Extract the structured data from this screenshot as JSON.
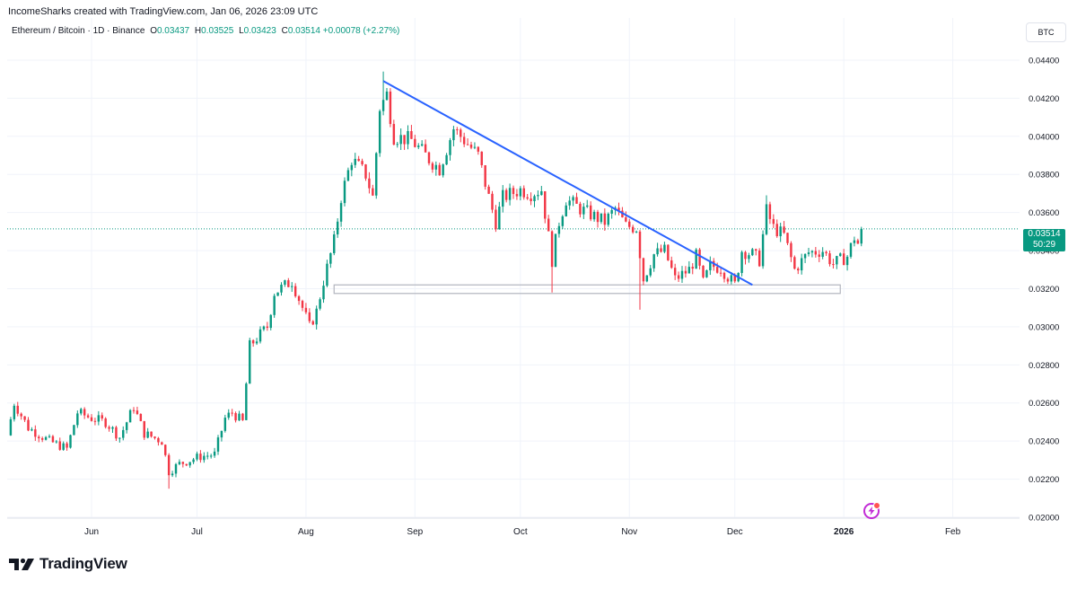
{
  "credit": {
    "author": "IncomeSharks",
    "text": "IncomeSharks created with TradingView.com, Jan 06, 2026 23:09 UTC"
  },
  "legend": {
    "symbol": "Ethereum / Bitcoin · 1D · Binance",
    "open_label": "O",
    "open": "0.03437",
    "high_label": "H",
    "high": "0.03525",
    "low_label": "L",
    "low": "0.03423",
    "close_label": "C",
    "close": "0.03514",
    "change": "+0.00078 (+2.27%)"
  },
  "currency_button": "BTC",
  "price_label": {
    "price": "0.03514",
    "countdown": "50:29"
  },
  "brand": {
    "name": "TradingView"
  },
  "colors": {
    "up": "#089981",
    "down": "#F23645",
    "trendline": "#2962FF",
    "grid": "#F0F3FA",
    "axis_text": "#131722",
    "box": "#B2B5BE",
    "lastprice_line": "#089981"
  },
  "icons": {
    "logo": "tradingview-logo-icon",
    "alert": "lightning-bolt-icon"
  },
  "chart_data": {
    "type": "candlestick",
    "title": "Ethereum / Bitcoin · 1D · Binance",
    "y_axis": {
      "side": "right",
      "ticks": [
        "0.02000",
        "0.02200",
        "0.02400",
        "0.02600",
        "0.02800",
        "0.03000",
        "0.03200",
        "0.03400",
        "0.03600",
        "0.03800",
        "0.04000",
        "0.04200",
        "0.04400"
      ],
      "ylim": [
        0.02,
        0.0448
      ]
    },
    "x_axis": {
      "labels": [
        "Jun",
        "Jul",
        "Aug",
        "Sep",
        "Oct",
        "Nov",
        "Dec",
        "2026",
        "Feb"
      ],
      "xlim": [
        "2025-05-08",
        "2026-02-20"
      ]
    },
    "grid": true,
    "last_price": 0.03514,
    "trendline": {
      "start": {
        "date": "2025-08-23",
        "value": 0.0429
      },
      "end": {
        "date": "2025-12-06",
        "value": 0.0322
      }
    },
    "support_zone": {
      "from": "2025-08-09",
      "to": "2025-12-31",
      "low": 0.03175,
      "high": 0.0322
    },
    "ohlc_anchors": [
      {
        "date": "2025-05-08",
        "close": 0.0243
      },
      {
        "date": "2025-05-10",
        "close": 0.026
      },
      {
        "date": "2025-05-14",
        "close": 0.0247
      },
      {
        "date": "2025-05-20",
        "close": 0.024
      },
      {
        "date": "2025-05-25",
        "close": 0.0236
      },
      {
        "date": "2025-05-28",
        "close": 0.0255
      },
      {
        "date": "2025-06-01",
        "close": 0.0252
      },
      {
        "date": "2025-06-05",
        "close": 0.025
      },
      {
        "date": "2025-06-09",
        "close": 0.0242
      },
      {
        "date": "2025-06-13",
        "close": 0.0258
      },
      {
        "date": "2025-06-16",
        "close": 0.0244
      },
      {
        "date": "2025-06-21",
        "close": 0.024
      },
      {
        "date": "2025-06-23",
        "close": 0.0224
      },
      {
        "date": "2025-06-26",
        "close": 0.0228
      },
      {
        "date": "2025-07-02",
        "close": 0.0232
      },
      {
        "date": "2025-07-06",
        "close": 0.0233
      },
      {
        "date": "2025-07-09",
        "close": 0.0252
      },
      {
        "date": "2025-07-11",
        "close": 0.0255
      },
      {
        "date": "2025-07-14",
        "close": 0.025
      },
      {
        "date": "2025-07-16",
        "close": 0.029
      },
      {
        "date": "2025-07-21",
        "close": 0.03
      },
      {
        "date": "2025-07-23",
        "close": 0.0318
      },
      {
        "date": "2025-07-28",
        "close": 0.0324
      },
      {
        "date": "2025-07-31",
        "close": 0.031
      },
      {
        "date": "2025-08-02",
        "close": 0.03
      },
      {
        "date": "2025-08-04",
        "close": 0.0308
      },
      {
        "date": "2025-08-06",
        "close": 0.0324
      },
      {
        "date": "2025-08-09",
        "close": 0.0345
      },
      {
        "date": "2025-08-11",
        "close": 0.0368
      },
      {
        "date": "2025-08-14",
        "close": 0.0388
      },
      {
        "date": "2025-08-18",
        "close": 0.038
      },
      {
        "date": "2025-08-20",
        "close": 0.0368
      },
      {
        "date": "2025-08-22",
        "close": 0.0415
      },
      {
        "date": "2025-08-24",
        "close": 0.0422
      },
      {
        "date": "2025-08-26",
        "close": 0.04
      },
      {
        "date": "2025-08-31",
        "close": 0.0398
      },
      {
        "date": "2025-09-05",
        "close": 0.0388
      },
      {
        "date": "2025-09-08",
        "close": 0.0383
      },
      {
        "date": "2025-09-12",
        "close": 0.0404
      },
      {
        "date": "2025-09-16",
        "close": 0.0396
      },
      {
        "date": "2025-09-19",
        "close": 0.039
      },
      {
        "date": "2025-09-22",
        "close": 0.0368
      },
      {
        "date": "2025-09-24",
        "close": 0.0355
      },
      {
        "date": "2025-09-26",
        "close": 0.0368
      },
      {
        "date": "2025-10-01",
        "close": 0.0372
      },
      {
        "date": "2025-10-04",
        "close": 0.037
      },
      {
        "date": "2025-10-07",
        "close": 0.0372
      },
      {
        "date": "2025-10-10",
        "close": 0.0335
      },
      {
        "date": "2025-10-12",
        "close": 0.0355
      },
      {
        "date": "2025-10-14",
        "close": 0.0367
      },
      {
        "date": "2025-10-18",
        "close": 0.0362
      },
      {
        "date": "2025-10-22",
        "close": 0.0358
      },
      {
        "date": "2025-10-25",
        "close": 0.0355
      },
      {
        "date": "2025-10-28",
        "close": 0.0362
      },
      {
        "date": "2025-10-31",
        "close": 0.0353
      },
      {
        "date": "2025-11-03",
        "close": 0.0352
      },
      {
        "date": "2025-11-05",
        "close": 0.0325
      },
      {
        "date": "2025-11-08",
        "close": 0.0338
      },
      {
        "date": "2025-11-11",
        "close": 0.034
      },
      {
        "date": "2025-11-14",
        "close": 0.0325
      },
      {
        "date": "2025-11-18",
        "close": 0.033
      },
      {
        "date": "2025-11-20",
        "close": 0.0337
      },
      {
        "date": "2025-11-22",
        "close": 0.0323
      },
      {
        "date": "2025-11-24",
        "close": 0.0332
      },
      {
        "date": "2025-11-27",
        "close": 0.0331
      },
      {
        "date": "2025-12-01",
        "close": 0.0322
      },
      {
        "date": "2025-12-03",
        "close": 0.034
      },
      {
        "date": "2025-12-06",
        "close": 0.0338
      },
      {
        "date": "2025-12-08",
        "close": 0.0335
      },
      {
        "date": "2025-12-10",
        "close": 0.0361
      },
      {
        "date": "2025-12-12",
        "close": 0.0352
      },
      {
        "date": "2025-12-15",
        "close": 0.0348
      },
      {
        "date": "2025-12-18",
        "close": 0.033
      },
      {
        "date": "2025-12-22",
        "close": 0.0339
      },
      {
        "date": "2025-12-26",
        "close": 0.034
      },
      {
        "date": "2025-12-29",
        "close": 0.0333
      },
      {
        "date": "2026-01-02",
        "close": 0.0337
      },
      {
        "date": "2026-01-04",
        "close": 0.0347
      },
      {
        "date": "2026-01-05",
        "close": 0.03437
      },
      {
        "date": "2026-01-06",
        "close": 0.03514
      }
    ],
    "last_candle": {
      "date": "2026-01-06",
      "open": 0.03437,
      "high": 0.03525,
      "low": 0.03423,
      "close": 0.03514
    },
    "spikes": [
      {
        "date": "2025-06-23",
        "low": 0.0215
      },
      {
        "date": "2025-08-23",
        "high": 0.0434
      },
      {
        "date": "2025-10-10",
        "low": 0.0318
      },
      {
        "date": "2025-11-04",
        "low": 0.0309
      },
      {
        "date": "2025-12-10",
        "high": 0.0369
      }
    ]
  }
}
